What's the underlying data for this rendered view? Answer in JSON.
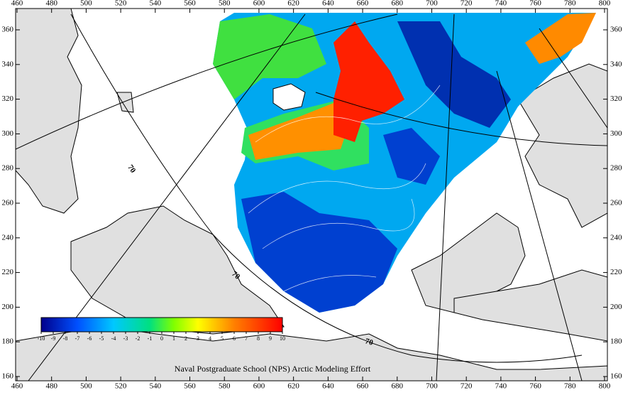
{
  "x_ticks": [
    460,
    480,
    500,
    520,
    540,
    560,
    580,
    600,
    620,
    640,
    660,
    680,
    700,
    720,
    740,
    760,
    780,
    800
  ],
  "y_ticks": [
    160,
    180,
    200,
    220,
    240,
    260,
    280,
    300,
    320,
    340,
    360
  ],
  "colorbar": {
    "ticks": [
      -10,
      -9,
      -8,
      -7,
      -6,
      -5,
      -4,
      -3,
      -2,
      -1,
      0,
      1,
      2,
      3,
      4,
      5,
      6,
      7,
      8,
      9,
      10
    ]
  },
  "latitude_labels": [
    "70",
    "70",
    "70"
  ],
  "credit": "Naval Postgraduate School (NPS) Arctic Modeling Effort"
}
